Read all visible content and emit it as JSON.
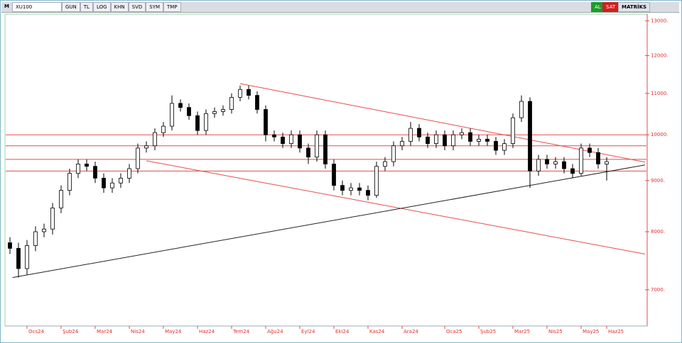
{
  "toolbar": {
    "mode": "M",
    "symbol": "XU100",
    "buttons": [
      "GUN",
      "TL",
      "LOG",
      "KHN",
      "SVD",
      "SYM",
      "TMP"
    ],
    "buy": "AL",
    "sell": "SAT",
    "brand": "MATRİKS"
  },
  "chart_data": {
    "type": "candlestick",
    "categories": [
      null,
      null,
      "Ocs24",
      null,
      null,
      null,
      "Şub24",
      null,
      null,
      null,
      "Mar24",
      null,
      null,
      null,
      "Nis24",
      null,
      null,
      null,
      "May24",
      null,
      null,
      null,
      "Haz24",
      null,
      null,
      null,
      "Tem24",
      null,
      null,
      null,
      "Ağu24",
      null,
      null,
      null,
      "Eyl24",
      null,
      null,
      null,
      "Eki24",
      null,
      null,
      null,
      "Kas24",
      null,
      null,
      null,
      "Ara24",
      null,
      null,
      null,
      null,
      "Oca25",
      null,
      null,
      null,
      "Şub25",
      null,
      null,
      null,
      "Mar25",
      null,
      null,
      null,
      "Nis25",
      null,
      null,
      null,
      "May25",
      null,
      null,
      "Haz25"
    ],
    "open": [
      7800,
      7700,
      7350,
      7750,
      8000,
      8050,
      8450,
      8800,
      9150,
      9350,
      9300,
      9050,
      8850,
      8950,
      9050,
      9250,
      9700,
      9750,
      10050,
      10200,
      10750,
      10650,
      10450,
      10100,
      10500,
      10550,
      10600,
      10900,
      11100,
      10950,
      10600,
      10000,
      9950,
      9800,
      10000,
      9700,
      9500,
      10000,
      9350,
      8900,
      8800,
      8850,
      8800,
      8700,
      9300,
      9400,
      9750,
      9850,
      10150,
      9950,
      9800,
      10000,
      9750,
      10000,
      10050,
      9850,
      9900,
      9850,
      9650,
      9800,
      10400,
      10800,
      9200,
      9450,
      9350,
      9400,
      9250,
      9150,
      9700,
      9600,
      9350
    ],
    "high": [
      7900,
      7800,
      7850,
      8100,
      8150,
      8550,
      8900,
      9250,
      9450,
      9450,
      9400,
      9150,
      9050,
      9150,
      9350,
      9800,
      9850,
      10150,
      10300,
      10950,
      10850,
      10750,
      10550,
      10600,
      10650,
      10700,
      11000,
      11200,
      11200,
      11050,
      10700,
      10100,
      10050,
      10100,
      10100,
      9800,
      10100,
      10100,
      9450,
      9000,
      8950,
      8950,
      8900,
      9400,
      9500,
      9850,
      9950,
      10300,
      10250,
      10050,
      10100,
      10100,
      10100,
      10150,
      10150,
      10000,
      10000,
      9950,
      9900,
      10500,
      10950,
      10900,
      9550,
      9550,
      9500,
      9500,
      9350,
      9800,
      9800,
      9700,
      9500
    ],
    "low": [
      7600,
      7200,
      7250,
      7650,
      7900,
      7950,
      8350,
      8700,
      9050,
      9200,
      8950,
      8750,
      8750,
      8850,
      8950,
      9150,
      9600,
      9650,
      9950,
      10100,
      10550,
      10350,
      10000,
      10000,
      10400,
      10450,
      10500,
      10800,
      10850,
      10500,
      9850,
      9850,
      9700,
      9700,
      9600,
      9350,
      9400,
      9250,
      8800,
      8700,
      8700,
      8700,
      8600,
      8650,
      9200,
      9300,
      9650,
      9750,
      9850,
      9700,
      9700,
      9650,
      9650,
      9900,
      9750,
      9750,
      9750,
      9550,
      9550,
      9700,
      10300,
      8850,
      9100,
      9250,
      9250,
      9150,
      9050,
      9100,
      9500,
      9250,
      9000
    ],
    "close": [
      7700,
      7350,
      7750,
      8000,
      8050,
      8450,
      8800,
      9150,
      9350,
      9300,
      9050,
      8850,
      8950,
      9050,
      9250,
      9700,
      9750,
      10050,
      10200,
      10750,
      10650,
      10450,
      10100,
      10500,
      10550,
      10600,
      10900,
      11100,
      10950,
      10600,
      10000,
      9950,
      9800,
      10000,
      9700,
      9500,
      10000,
      9350,
      8900,
      8800,
      8850,
      8800,
      8700,
      9300,
      9400,
      9750,
      9850,
      10150,
      9950,
      9800,
      10000,
      9750,
      10000,
      10050,
      9850,
      9900,
      9850,
      9650,
      9800,
      10400,
      10800,
      9200,
      9450,
      9350,
      9400,
      9250,
      9150,
      9700,
      9600,
      9350,
      9400
    ],
    "color": "#000000",
    "log_scale": true,
    "ylim": [
      6440,
      13200
    ],
    "yticks": [
      {
        "value": 7000,
        "label": "7000."
      },
      {
        "value": 8000,
        "label": "8000."
      },
      {
        "value": 9000,
        "label": "9000."
      },
      {
        "value": 10000,
        "label": "10000."
      },
      {
        "value": 11000,
        "label": "11000."
      },
      {
        "value": 12000,
        "label": "12000."
      },
      {
        "value": 13000,
        "label": "13000."
      }
    ],
    "hlines": {
      "color": "#e84a4a",
      "values": [
        10000,
        9750,
        9450,
        9200
      ]
    },
    "trendlines": [
      {
        "color": "#e84a4a",
        "x": [
          27,
          74.5
        ],
        "y": [
          11250,
          9390
        ]
      },
      {
        "color": "#e84a4a",
        "x": [
          16,
          74.5
        ],
        "y": [
          9420,
          7600
        ]
      },
      {
        "color": "#222222",
        "x": [
          0.3,
          74.5
        ],
        "y": [
          7200,
          9330
        ]
      }
    ]
  }
}
